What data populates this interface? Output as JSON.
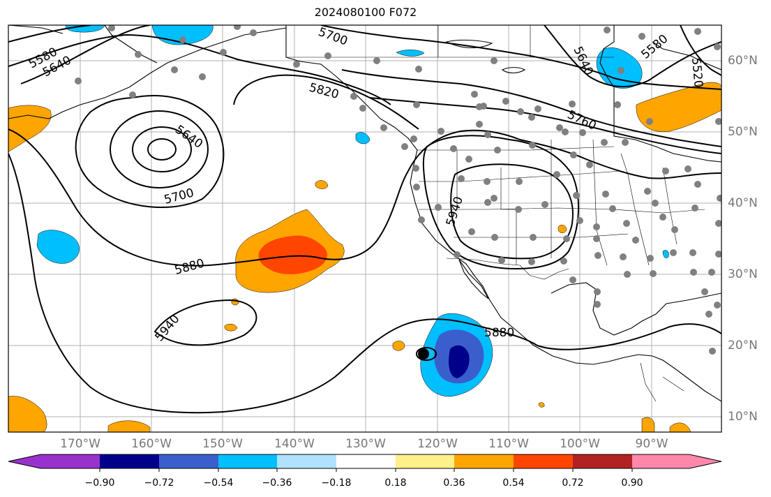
{
  "title": "2024080100 F072",
  "lon_labels": [
    "170°W",
    "160°W",
    "150°W",
    "140°W",
    "130°W",
    "120°W",
    "110°W",
    "100°W",
    "90°W"
  ],
  "lat_labels": [
    "60°N",
    "50°N",
    "40°N",
    "30°N",
    "20°N",
    "10°N"
  ],
  "contour_labels": [
    "5580",
    "5640",
    "5700",
    "5820",
    "5640",
    "5700",
    "5880",
    "5940",
    "5760",
    "5640",
    "5580",
    "5520",
    "5940",
    "5880"
  ],
  "colorbar": {
    "ticks": [
      "−0.90",
      "−0.72",
      "−0.54",
      "−0.36",
      "−0.18",
      "0.18",
      "0.36",
      "0.54",
      "0.72",
      "0.90"
    ],
    "colors": [
      "#9932cc",
      "#00008b",
      "#3a5fcd",
      "#00bfff",
      "#b0e2ff",
      "#ffffff",
      "#fff08a",
      "#ffa500",
      "#ff4500",
      "#b22222",
      "#ff88aa"
    ]
  },
  "fill_colors": {
    "orange": "#ffa500",
    "red_orange": "#ff4500",
    "light_blue": "#00bfff",
    "mid_blue": "#3a5fcd",
    "navy": "#00008b"
  }
}
